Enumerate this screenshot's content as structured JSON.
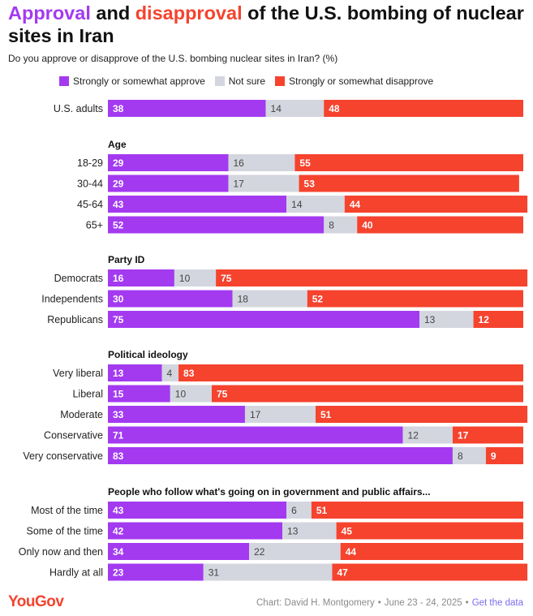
{
  "title": {
    "approval": "Approval",
    "and": " and ",
    "disapproval": "disapproval",
    "rest": " of the U.S. bombing of nuclear sites in Iran"
  },
  "subtitle": "Do you approve or disapprove of the U.S. bombing nuclear sites in Iran? (%)",
  "colors": {
    "approve": "#a33af0",
    "not_sure": "#d3d6de",
    "disapprove": "#f5432e",
    "title_approve": "#a33af0",
    "title_disapprove": "#f5432e"
  },
  "legend": [
    {
      "label": "Strongly or somewhat approve",
      "color": "#a33af0"
    },
    {
      "label": "Not sure",
      "color": "#d3d6de"
    },
    {
      "label": "Strongly or somewhat disapprove",
      "color": "#f5432e"
    }
  ],
  "chart_data": {
    "type": "bar",
    "orientation": "horizontal",
    "stacked": true,
    "xlim": [
      0,
      100
    ],
    "series_names": [
      "Strongly or somewhat approve",
      "Not sure",
      "Strongly or somewhat disapprove"
    ],
    "groups": [
      {
        "heading": "",
        "rows": [
          {
            "label": "U.S. adults",
            "values": [
              38,
              14,
              48
            ]
          }
        ]
      },
      {
        "heading": "Age",
        "rows": [
          {
            "label": "18-29",
            "values": [
              29,
              16,
              55
            ]
          },
          {
            "label": "30-44",
            "values": [
              29,
              17,
              53
            ]
          },
          {
            "label": "45-64",
            "values": [
              43,
              14,
              44
            ]
          },
          {
            "label": "65+",
            "values": [
              52,
              8,
              40
            ]
          }
        ]
      },
      {
        "heading": "Party ID",
        "rows": [
          {
            "label": "Democrats",
            "values": [
              16,
              10,
              75
            ]
          },
          {
            "label": "Independents",
            "values": [
              30,
              18,
              52
            ]
          },
          {
            "label": "Republicans",
            "values": [
              75,
              13,
              12
            ]
          }
        ]
      },
      {
        "heading": "Political ideology",
        "rows": [
          {
            "label": "Very liberal",
            "values": [
              13,
              4,
              83
            ]
          },
          {
            "label": "Liberal",
            "values": [
              15,
              10,
              75
            ]
          },
          {
            "label": "Moderate",
            "values": [
              33,
              17,
              51
            ]
          },
          {
            "label": "Conservative",
            "values": [
              71,
              12,
              17
            ]
          },
          {
            "label": "Very conservative",
            "values": [
              83,
              8,
              9
            ]
          }
        ]
      },
      {
        "heading": "People who follow what's going on in government and public affairs...",
        "rows": [
          {
            "label": "Most of the time",
            "values": [
              43,
              6,
              51
            ]
          },
          {
            "label": "Some of the time",
            "values": [
              42,
              13,
              45
            ]
          },
          {
            "label": "Only now and then",
            "values": [
              34,
              22,
              44
            ]
          },
          {
            "label": "Hardly at all",
            "values": [
              23,
              31,
              47
            ]
          }
        ]
      }
    ]
  },
  "footer": {
    "logo": "YouGov",
    "credit": "Chart: David H. Montgomery",
    "separator": "•",
    "dates": "June 23 - 24, 2025",
    "link": "Get the data"
  }
}
